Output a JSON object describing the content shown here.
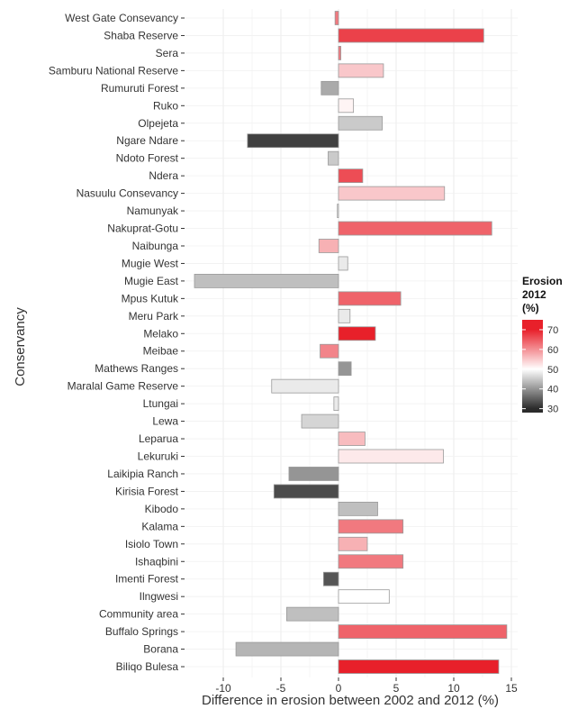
{
  "chart_data": {
    "type": "bar",
    "orientation": "horizontal",
    "xlabel": "Difference in erosion between 2002 and 2012 (%)",
    "ylabel": "Conservancy",
    "xlim": [
      -12.5,
      15
    ],
    "xticks": [
      -10,
      -5,
      0,
      5,
      10,
      15
    ],
    "grid": true,
    "legend": {
      "title_line1": "Erosion",
      "title_line2": "2012",
      "title_line3": "(%)",
      "placement": "right",
      "ticks": [
        30,
        40,
        50,
        60,
        70
      ],
      "tick_labels": [
        "30",
        "40",
        "50",
        "60",
        "70"
      ],
      "range": [
        28,
        75
      ],
      "colors": {
        "low": "#2b2b2b",
        "mid": "#ffffff",
        "high": "#e8202a"
      }
    },
    "categories": [
      "West Gate Consevancy",
      "Shaba Reserve",
      "Sera",
      "Samburu National Reserve",
      "Rumuruti Forest",
      "Ruko",
      "Olpejeta",
      "Ngare Ndare",
      "Ndoto Forest",
      "Ndera",
      "Nasuulu Consevancy",
      "Namunyak",
      "Nakuprat-Gotu",
      "Naibunga",
      "Mugie West",
      "Mugie East",
      "Mpus Kutuk",
      "Meru Park",
      "Melako",
      "Meibae",
      "Mathews Ranges",
      "Maralal Game Reserve",
      "Ltungai",
      "Lewa",
      "Leparua",
      "Lekuruki",
      "Laikipia Ranch",
      "Kirisia Forest",
      "Kibodo",
      "Kalama",
      "Isiolo Town",
      "Ishaqbini",
      "Imenti Forest",
      "Ilngwesi",
      "Community area",
      "Buffalo Springs",
      "Borana",
      "Biliqo Bulesa"
    ],
    "values": [
      -0.3,
      12.6,
      0.2,
      3.9,
      -1.5,
      1.3,
      3.8,
      -7.9,
      -0.9,
      2.1,
      9.2,
      -0.1,
      13.3,
      -1.7,
      0.8,
      -12.5,
      5.4,
      1.0,
      3.2,
      -1.6,
      1.1,
      -5.8,
      -0.4,
      -3.2,
      2.3,
      9.1,
      -4.3,
      -5.6,
      3.4,
      5.6,
      2.5,
      5.6,
      -1.3,
      4.4,
      -4.5,
      14.6,
      -8.9,
      13.9
    ],
    "erosion_2012": [
      62,
      67,
      62,
      55,
      42,
      51,
      45,
      32,
      45,
      66,
      55,
      48,
      64,
      57,
      48,
      44,
      64,
      48,
      72,
      61,
      40,
      48,
      48,
      46,
      56,
      52,
      40,
      33,
      44,
      62,
      57,
      62,
      34,
      50,
      44,
      64,
      43,
      71
    ]
  }
}
